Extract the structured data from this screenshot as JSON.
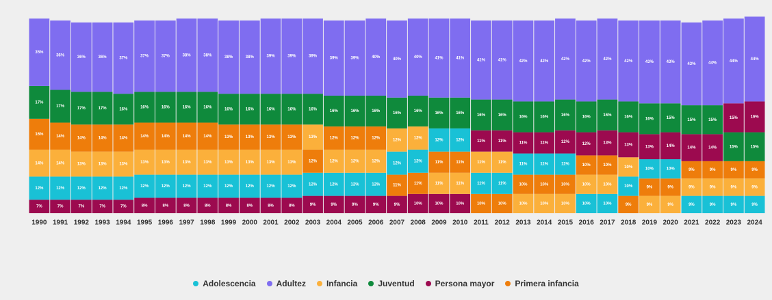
{
  "chart_data": {
    "type": "bar",
    "stacked": true,
    "categories": [
      "1990",
      "1991",
      "1992",
      "1993",
      "1994",
      "1995",
      "1996",
      "1997",
      "1998",
      "1999",
      "2000",
      "2001",
      "2002",
      "2003",
      "2004",
      "2005",
      "2006",
      "2007",
      "2008",
      "2009",
      "2010",
      "2011",
      "2012",
      "2013",
      "2014",
      "2015",
      "2016",
      "2017",
      "2018",
      "2019",
      "2020",
      "2021",
      "2022",
      "2023",
      "2024"
    ],
    "ylim": [
      0,
      100
    ],
    "series": [
      {
        "name": "Adolescencia",
        "color": "#19c1d6",
        "values": [
          12,
          12,
          12,
          12,
          12,
          12,
          12,
          12,
          12,
          12,
          12,
          12,
          12,
          12,
          12,
          12,
          12,
          12,
          12,
          12,
          12,
          11,
          11,
          11,
          11,
          11,
          10,
          10,
          10,
          10,
          10,
          9,
          9,
          9,
          9
        ],
        "value_labels": [
          "12%",
          "12%",
          "12%",
          "12%",
          "12%",
          "12%",
          "12%",
          "12%",
          "12%",
          "12%",
          "12%",
          "12%",
          "12%",
          "12%",
          "12%",
          "12%",
          "12%",
          "12%",
          "12%",
          "12%",
          "12%",
          "11%",
          "11%",
          "11%",
          "11%",
          "11%",
          "10%",
          "10%",
          "10%",
          "10%",
          "10%",
          "9%",
          "9%",
          "9%",
          "9%"
        ]
      },
      {
        "name": "Adultez",
        "color": "#7f6df0",
        "values": [
          35,
          36,
          36,
          36,
          37,
          37,
          37,
          38,
          38,
          38,
          38,
          39,
          39,
          39,
          39,
          39,
          40,
          40,
          40,
          41,
          41,
          41,
          41,
          42,
          42,
          42,
          42,
          42,
          42,
          43,
          43,
          43,
          44,
          44,
          44
        ],
        "value_labels": [
          "35%",
          "36%",
          "36%",
          "36%",
          "37%",
          "37%",
          "37%",
          "38%",
          "38%",
          "38%",
          "38%",
          "39%",
          "39%",
          "39%",
          "39%",
          "39%",
          "40%",
          "40%",
          "40%",
          "41%",
          "41%",
          "41%",
          "41%",
          "42%",
          "42%",
          "42%",
          "42%",
          "42%",
          "42%",
          "43%",
          "43%",
          "43%",
          "44%",
          "44%",
          "44%"
        ]
      },
      {
        "name": "Infancia",
        "color": "#fbb03b",
        "values": [
          14,
          14,
          13,
          13,
          13,
          13,
          13,
          13,
          13,
          13,
          13,
          13,
          13,
          13,
          12,
          12,
          12,
          12,
          12,
          11,
          11,
          11,
          11,
          10,
          10,
          10,
          10,
          10,
          10,
          9,
          9,
          9,
          9,
          9,
          9
        ],
        "value_labels": [
          "14%",
          "14%",
          "13%",
          "13%",
          "13%",
          "13%",
          "13%",
          "13%",
          "13%",
          "13%",
          "13%",
          "13%",
          "13%",
          "13%",
          "12%",
          "12%",
          "12%",
          "12%",
          "12%",
          "11%",
          "11%",
          "11%",
          "11%",
          "10%",
          "10%",
          "10%",
          "10%",
          "10%",
          "10%",
          "9%",
          "9%",
          "9%",
          "9%",
          "9%",
          "9%"
        ]
      },
      {
        "name": "Juventud",
        "color": "#0f8a3c",
        "values": [
          17,
          17,
          17,
          17,
          16,
          16,
          16,
          16,
          16,
          16,
          16,
          16,
          16,
          16,
          16,
          16,
          16,
          16,
          16,
          16,
          16,
          16,
          16,
          16,
          16,
          16,
          16,
          16,
          16,
          16,
          15,
          15,
          15,
          15,
          15
        ],
        "value_labels": [
          "17%",
          "17%",
          "17%",
          "17%",
          "16%",
          "16%",
          "16%",
          "16%",
          "16%",
          "16%",
          "16%",
          "16%",
          "16%",
          "16%",
          "16%",
          "16%",
          "16%",
          "16%",
          "16%",
          "16%",
          "16%",
          "16%",
          "16%",
          "16%",
          "16%",
          "16%",
          "16%",
          "16%",
          "16%",
          "16%",
          "15%",
          "15%",
          "15%",
          "15%",
          "15%"
        ]
      },
      {
        "name": "Persona mayor",
        "color": "#9c0a4f",
        "values": [
          7,
          7,
          7,
          7,
          7,
          8,
          8,
          8,
          8,
          8,
          8,
          8,
          8,
          9,
          9,
          9,
          9,
          9,
          10,
          10,
          10,
          11,
          11,
          11,
          11,
          12,
          12,
          13,
          13,
          13,
          14,
          14,
          14,
          15,
          16
        ],
        "value_labels": [
          "7%",
          "7%",
          "7%",
          "7%",
          "7%",
          "8%",
          "8%",
          "8%",
          "8%",
          "8%",
          "8%",
          "8%",
          "8%",
          "9%",
          "9%",
          "9%",
          "9%",
          "9%",
          "10%",
          "10%",
          "10%",
          "11%",
          "11%",
          "11%",
          "11%",
          "12%",
          "12%",
          "13%",
          "13%",
          "13%",
          "14%",
          "14%",
          "14%",
          "15%",
          "16%"
        ]
      },
      {
        "name": "Primera infancia",
        "color": "#ee7d0b",
        "values": [
          16,
          14,
          14,
          14,
          14,
          14,
          14,
          14,
          14,
          13,
          13,
          13,
          13,
          12,
          12,
          12,
          12,
          11,
          11,
          11,
          11,
          10,
          10,
          10,
          10,
          10,
          10,
          10,
          9,
          9,
          9,
          9,
          9,
          9,
          9
        ],
        "value_labels": [
          "16%",
          "14%",
          "14%",
          "14%",
          "14%",
          "14%",
          "14%",
          "14%",
          "14%",
          "13%",
          "13%",
          "13%",
          "13%",
          "12%",
          "12%",
          "12%",
          "12%",
          "11%",
          "11%",
          "11%",
          "11%",
          "10%",
          "10%",
          "10%",
          "10%",
          "10%",
          "10%",
          "10%",
          "9%",
          "9%",
          "9%",
          "9%",
          "9%",
          "9%",
          "9%"
        ]
      }
    ]
  }
}
